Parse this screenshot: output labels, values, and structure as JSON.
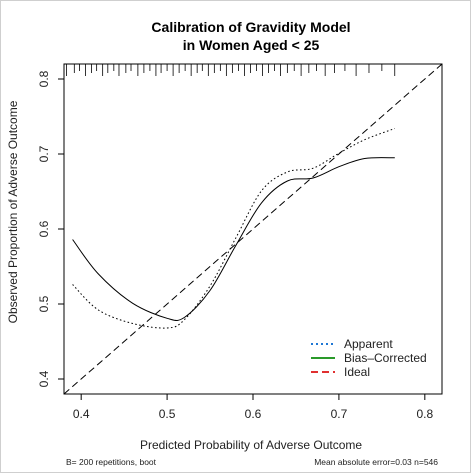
{
  "chart_data": {
    "type": "line",
    "title_line1": "Calibration of Gravidity Model",
    "title_line2": "in Women Aged < 25",
    "xlabel": "Predicted Probability of Adverse Outcome",
    "ylabel": "Observed Proportion of Adverse Outcome",
    "xlim": [
      0.38,
      0.82
    ],
    "ylim": [
      0.38,
      0.82
    ],
    "x_ticks": [
      0.4,
      0.5,
      0.6,
      0.7,
      0.8
    ],
    "y_ticks": [
      0.4,
      0.5,
      0.6,
      0.7,
      0.8
    ],
    "x_tick_labels": [
      "0.4",
      "0.5",
      "0.6",
      "0.7",
      "0.8"
    ],
    "y_tick_labels": [
      "0.4",
      "0.5",
      "0.6",
      "0.7",
      "0.8"
    ],
    "grid": false,
    "legend_position": "bottom-right",
    "series": [
      {
        "name": "Apparent",
        "style": "dotted",
        "color": "#000000",
        "legend_color": "#1f77d4",
        "x": [
          0.39,
          0.42,
          0.46,
          0.5,
          0.52,
          0.55,
          0.58,
          0.61,
          0.64,
          0.67,
          0.7,
          0.73,
          0.765
        ],
        "y": [
          0.526,
          0.492,
          0.474,
          0.468,
          0.479,
          0.524,
          0.588,
          0.651,
          0.676,
          0.681,
          0.701,
          0.719,
          0.734
        ]
      },
      {
        "name": "Bias–Corrected",
        "style": "solid",
        "color": "#000000",
        "legend_color": "#2a9a2a",
        "x": [
          0.39,
          0.42,
          0.46,
          0.5,
          0.52,
          0.55,
          0.58,
          0.61,
          0.64,
          0.67,
          0.7,
          0.73,
          0.765
        ],
        "y": [
          0.586,
          0.54,
          0.501,
          0.481,
          0.482,
          0.518,
          0.578,
          0.635,
          0.664,
          0.668,
          0.683,
          0.694,
          0.695
        ]
      },
      {
        "name": "Ideal",
        "style": "dashed",
        "color": "#000000",
        "legend_color": "#e03030",
        "x": [
          0.38,
          0.82
        ],
        "y": [
          0.38,
          0.82
        ]
      }
    ],
    "rug_x": [
      0.383,
      0.392,
      0.398,
      0.405,
      0.412,
      0.418,
      0.425,
      0.431,
      0.438,
      0.444,
      0.452,
      0.458,
      0.466,
      0.473,
      0.48,
      0.487,
      0.493,
      0.5,
      0.507,
      0.514,
      0.521,
      0.528,
      0.535,
      0.541,
      0.548,
      0.555,
      0.562,
      0.569,
      0.576,
      0.583,
      0.59,
      0.597,
      0.604,
      0.611,
      0.618,
      0.625,
      0.632,
      0.64,
      0.648,
      0.656,
      0.665,
      0.674,
      0.684,
      0.695,
      0.707,
      0.72,
      0.735,
      0.75,
      0.765
    ],
    "footer_left": "B= 200 repetitions, boot",
    "footer_right": "Mean absolute error=0.03 n=546"
  }
}
